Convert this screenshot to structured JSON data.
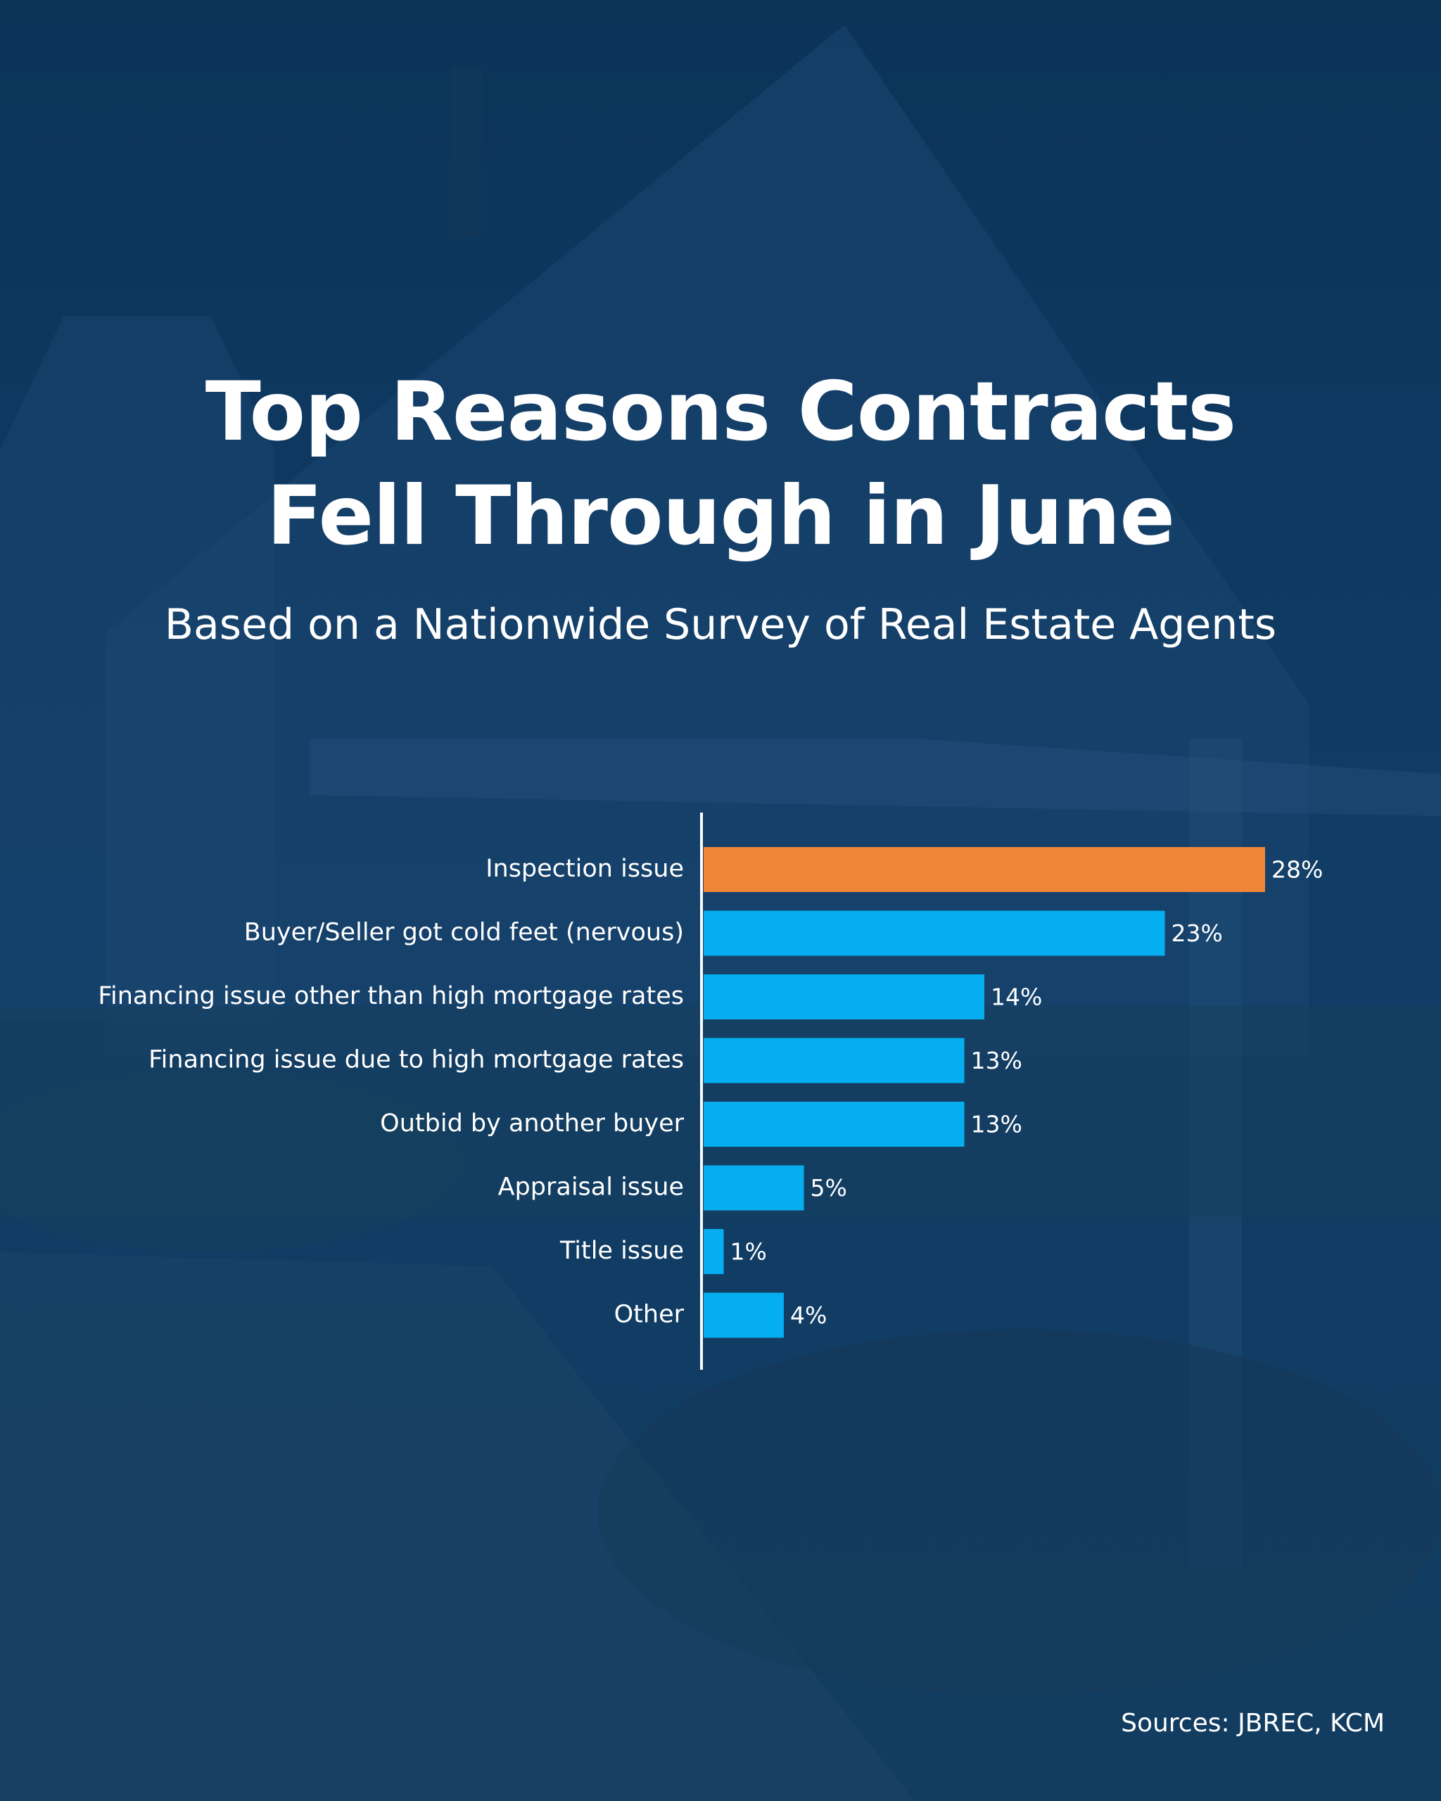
{
  "header": {
    "title_line_1": "Top Reasons Contracts",
    "title_line_2": "Fell Through in June",
    "subtitle": "Based on a Nationwide Survey of Real Estate Agents"
  },
  "footer": {
    "sources": "Sources: JBREC, KCM"
  },
  "colors": {
    "background": "#0f3a63",
    "highlight_bar": "#ee8537",
    "bar": "#05aef0",
    "text": "#ffffff"
  },
  "chart_data": {
    "type": "bar",
    "orientation": "horizontal",
    "title": "Top Reasons Contracts Fell Through in June",
    "subtitle": "Based on a Nationwide Survey of Real Estate Agents",
    "categories": [
      "Inspection issue",
      "Buyer/Seller got cold feet (nervous)",
      "Financing issue other than high mortgage rates",
      "Financing issue due to high mortgage rates",
      "Outbid by another buyer",
      "Appraisal issue",
      "Title issue",
      "Other"
    ],
    "values": [
      28,
      23,
      14,
      13,
      13,
      5,
      1,
      4
    ],
    "value_labels": [
      "28%",
      "23%",
      "14%",
      "13%",
      "13%",
      "5%",
      "1%",
      "4%"
    ],
    "unit": "%",
    "highlighted_category": "Inspection issue",
    "xlim": [
      0,
      28
    ],
    "grid": false,
    "legend": "none"
  }
}
